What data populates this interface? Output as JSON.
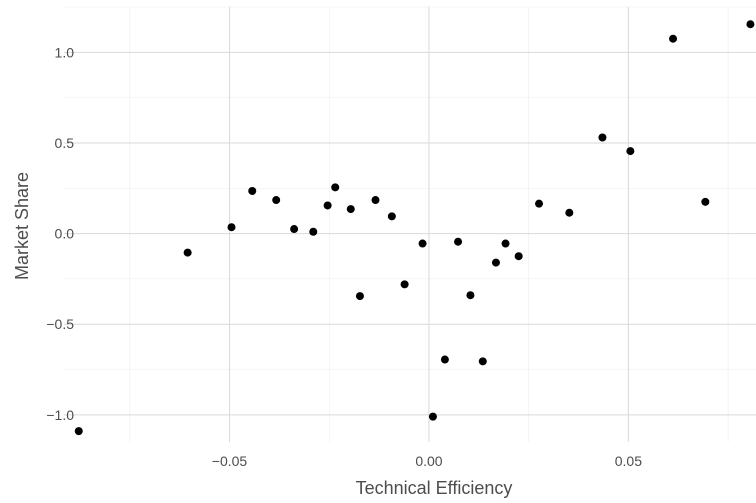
{
  "chart_data": {
    "type": "scatter",
    "title": "",
    "xlabel": "Technical Efficiency",
    "ylabel": "Market Share",
    "xlim": [
      -0.0915,
      0.082
    ],
    "ylim": [
      -1.15,
      1.25
    ],
    "x_ticks": [
      -0.05,
      0.0,
      0.05
    ],
    "x_tick_labels": [
      "−0.05",
      "0.00",
      "0.05"
    ],
    "y_ticks": [
      -1.0,
      -0.5,
      0.0,
      0.5,
      1.0
    ],
    "y_tick_labels": [
      "−1.0",
      "−0.5",
      "0.0",
      "0.5",
      "1.0"
    ],
    "grid": true,
    "point_color": "#000000",
    "points": [
      {
        "x": -0.0878,
        "y": -1.09
      },
      {
        "x": -0.0605,
        "y": -0.105
      },
      {
        "x": -0.0495,
        "y": 0.035
      },
      {
        "x": -0.0443,
        "y": 0.235
      },
      {
        "x": -0.0383,
        "y": 0.185
      },
      {
        "x": -0.0338,
        "y": 0.025
      },
      {
        "x": -0.029,
        "y": 0.01
      },
      {
        "x": -0.0254,
        "y": 0.155
      },
      {
        "x": -0.0235,
        "y": 0.255
      },
      {
        "x": -0.0196,
        "y": 0.135
      },
      {
        "x": -0.0173,
        "y": -0.345
      },
      {
        "x": -0.0134,
        "y": 0.185
      },
      {
        "x": -0.0093,
        "y": 0.095
      },
      {
        "x": -0.0061,
        "y": -0.28
      },
      {
        "x": -0.0016,
        "y": -0.055
      },
      {
        "x": 0.001,
        "y": -1.01
      },
      {
        "x": 0.004,
        "y": -0.695
      },
      {
        "x": 0.0073,
        "y": -0.045
      },
      {
        "x": 0.0104,
        "y": -0.34
      },
      {
        "x": 0.0135,
        "y": -0.705
      },
      {
        "x": 0.0168,
        "y": -0.16
      },
      {
        "x": 0.0192,
        "y": -0.055
      },
      {
        "x": 0.0225,
        "y": -0.125
      },
      {
        "x": 0.0276,
        "y": 0.165
      },
      {
        "x": 0.0352,
        "y": 0.115
      },
      {
        "x": 0.0435,
        "y": 0.53
      },
      {
        "x": 0.0505,
        "y": 0.455
      },
      {
        "x": 0.0612,
        "y": 1.075
      },
      {
        "x": 0.0693,
        "y": 0.175
      },
      {
        "x": 0.0806,
        "y": 1.155
      }
    ]
  }
}
